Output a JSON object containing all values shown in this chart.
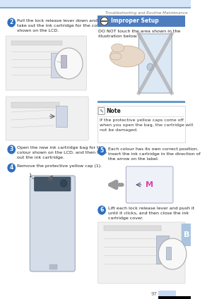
{
  "page_title": "Troubleshooting and Routine Maintenance",
  "page_number": "97",
  "bg_color": "#ffffff",
  "header_bar_light": "#d6e4f7",
  "header_bar_dark": "#7aaad8",
  "footer_bar_light": "#c5d9f7",
  "footer_bar_dark": "#000000",
  "side_tab_color": "#aac4e0",
  "side_tab_text": "B",
  "step_circle_color": "#2e6fbe",
  "step_circle_text_color": "#ffffff",
  "improper_setup_bg": "#4d7cbf",
  "improper_setup_icon_bg": "#ffffff",
  "note_bg": "#ffffff",
  "note_border": "#cccccc",
  "separator_color": "#6699cc"
}
